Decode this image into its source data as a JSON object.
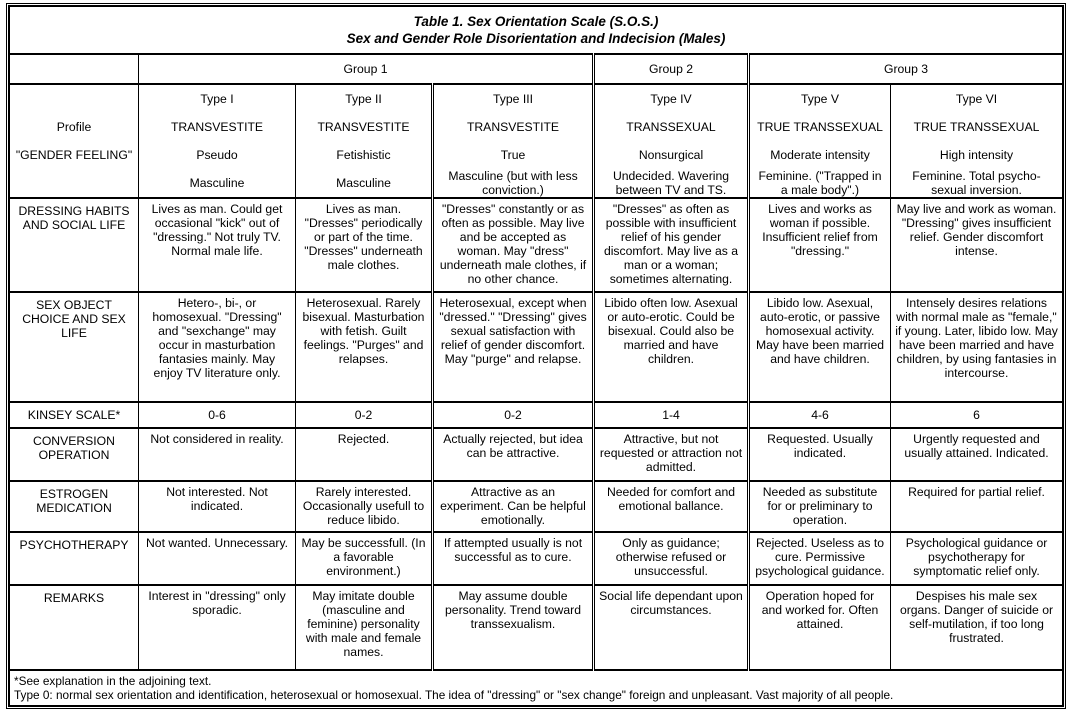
{
  "title": "Table 1. Sex Orientation Scale (S.O.S.)",
  "subtitle": "Sex and Gender Role Disorientation and Indecision (Males)",
  "groups": [
    "Group 1",
    "Group 2",
    "Group 3"
  ],
  "header_labels": [
    "",
    "Profile",
    "\"GENDER FEELING\"",
    ""
  ],
  "types": [
    {
      "type": "Type I",
      "profile": "TRANSVESTITE",
      "feeling": "Pseudo",
      "gender": "Masculine"
    },
    {
      "type": "Type II",
      "profile": "TRANSVESTITE",
      "feeling": "Fetishistic",
      "gender": "Masculine"
    },
    {
      "type": "Type III",
      "profile": "TRANSVESTITE",
      "feeling": "True",
      "gender": "Masculine (but with less conviction.)"
    },
    {
      "type": "Type IV",
      "profile": "TRANSSEXUAL",
      "feeling": "Nonsurgical",
      "gender": "Undecided. Wavering between TV and TS."
    },
    {
      "type": "Type V",
      "profile": "TRUE TRANSSEXUAL",
      "feeling": "Moderate intensity",
      "gender": "Feminine. (\"Trapped in a male body\".)"
    },
    {
      "type": "Type VI",
      "profile": "TRUE TRANSSEXUAL",
      "feeling": "High intensity",
      "gender": "Feminine. Total psycho-sexual inversion."
    }
  ],
  "rows": [
    {
      "label": "DRESSING HABITS AND SOCIAL LIFE",
      "cells": [
        "Lives as man. Could get occasional \"kick\" out of \"dressing.\" Not truly TV. Normal male life.",
        "Lives as man. \"Dresses\" periodically or part of the time. \"Dresses\" underneath male clothes.",
        "\"Dresses\" constantly or as often as possible. May live and be accepted as woman. May \"dress\" underneath male clothes, if no other chance.",
        "\"Dresses\" as often as possible with insufficient relief of his gender discomfort. May live as a man or a woman; sometimes alternating.",
        "Lives and works as woman if possible. Insufficient relief from \"dressing.\"",
        "May live and work as woman. \"Dressing\" gives insufficient relief. Gender discomfort intense."
      ]
    },
    {
      "label": "SEX OBJECT CHOICE AND SEX LIFE",
      "cells": [
        "Hetero-, bi-, or homosexual. \"Dressing\" and \"sexchange\" may occur in masturbation fantasies mainly. May enjoy TV literature only.",
        "Heterosexual. Rarely bisexual. Masturbation with fetish. Guilt feelings. \"Purges\" and relapses.",
        "Heterosexual, except when \"dressed.\" \"Dressing\" gives sexual satisfaction with relief of gender discomfort. May \"purge\" and relapse.",
        "Libido often low. Asexual or auto-erotic. Could be bisexual. Could also be married and have children.",
        "Libido low. Asexual, auto-erotic, or passive homosexual activity. May have been married and have children.",
        "Intensely desires relations with normal male as \"female,\" if young. Later, libido low. May have been married and have children, by using fantasies in intercourse."
      ]
    },
    {
      "label": "KINSEY SCALE*",
      "cells": [
        "0-6",
        "0-2",
        "0-2",
        "1-4",
        "4-6",
        "6"
      ]
    },
    {
      "label": "CONVERSION OPERATION",
      "cells": [
        "Not considered in reality.",
        "Rejected.",
        "Actually rejected, but idea can be attractive.",
        "Attractive, but not requested or attraction not admitted.",
        "Requested. Usually indicated.",
        "Urgently requested and usually attained. Indicated."
      ]
    },
    {
      "label": "ESTROGEN MEDICATION",
      "cells": [
        "Not interested. Not indicated.",
        "Rarely interested. Occasionally usefull to reduce libido.",
        "Attractive as an experiment. Can be helpful emotionally.",
        "Needed for comfort and emotional ballance.",
        "Needed as substitute for or preliminary to operation.",
        "Required for partial relief."
      ]
    },
    {
      "label": "PSYCHOTHERAPY",
      "cells": [
        "Not wanted. Unnecessary.",
        "May be successfull. (In a favorable environment.)",
        "If attempted usually is not successful as to cure.",
        "Only as guidance; otherwise refused or unsuccessful.",
        "Rejected. Useless as to cure. Permissive psychological guidance.",
        "Psychological guidance or psychotherapy for symptomatic relief only."
      ]
    },
    {
      "label": "REMARKS",
      "cells": [
        "Interest in \"dressing\" only sporadic.",
        "May imitate double (masculine and feminine) personality with male and female names.",
        "May assume double personality. Trend toward transsexualism.",
        "Social life dependant upon circumstances.",
        "Operation hoped for and worked for. Often attained.",
        "Despises his male sex organs. Danger of suicide or self-mutilation, if too long frustrated."
      ]
    }
  ],
  "footnotes": [
    "*See explanation in the adjoining text.",
    "Type 0: normal sex orientation and identification, heterosexual or homosexual. The idea of \"dressing\" or \"sex change\" foreign and unpleasant. Vast majority of all people."
  ]
}
